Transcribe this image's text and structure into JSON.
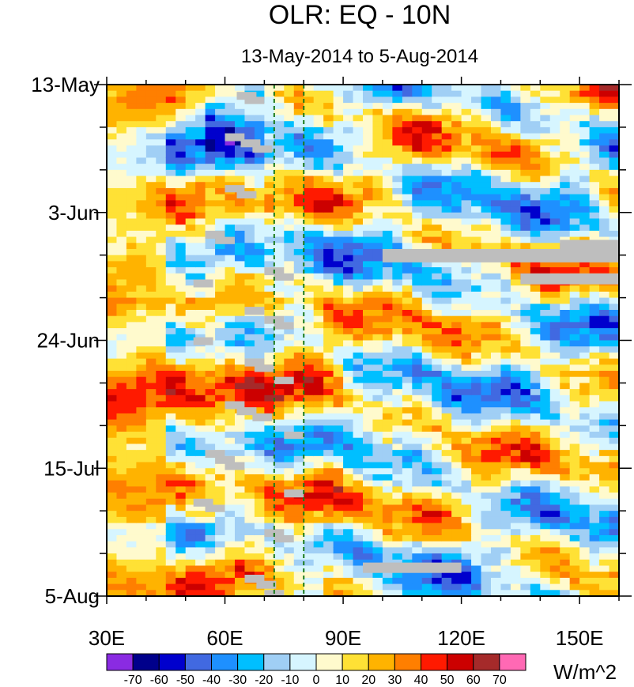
{
  "chart_data": {
    "type": "heatmap",
    "title": "OLR: EQ - 10N",
    "subtitle": "13-May-2014 to 5-Aug-2014",
    "xlabel": "",
    "ylabel": "",
    "xlim": [
      30,
      160
    ],
    "ylim_days": [
      0,
      84
    ],
    "x_ticks": [
      {
        "value": 30,
        "label": "30E"
      },
      {
        "value": 60,
        "label": "60E"
      },
      {
        "value": 90,
        "label": "90E"
      },
      {
        "value": 120,
        "label": "120E"
      },
      {
        "value": 150,
        "label": "150E"
      }
    ],
    "y_ticks": [
      {
        "day": 0,
        "label": "13-May"
      },
      {
        "day": 21,
        "label": "3-Jun"
      },
      {
        "day": 42,
        "label": "24-Jun"
      },
      {
        "day": 63,
        "label": "15-Jul"
      },
      {
        "day": 84,
        "label": "5-Aug"
      }
    ],
    "reference_lines_lon": [
      72.5,
      80
    ],
    "colorbar": {
      "units": "W/m^2",
      "levels": [
        -70,
        -60,
        -50,
        -40,
        -30,
        -20,
        -10,
        0,
        10,
        20,
        30,
        40,
        50,
        60,
        70
      ],
      "colors": [
        "#8a2be2",
        "#00008b",
        "#0000cd",
        "#4169e1",
        "#1e90ff",
        "#00bfff",
        "#a0cff5",
        "#d6f5ff",
        "#fffacd",
        "#ffe135",
        "#ffb300",
        "#ff7f00",
        "#ff1a00",
        "#cc0000",
        "#a52a2a",
        "#ff69b4"
      ]
    },
    "grid": false,
    "missing_color": "#bebebe"
  },
  "axis_labels": {
    "x": [
      "30E",
      "60E",
      "90E",
      "120E",
      "150E"
    ],
    "y": [
      "13-May",
      "3-Jun",
      "24-Jun",
      "15-Jul",
      "5-Aug"
    ],
    "colorbar_ticks": [
      "-70",
      "-60",
      "-50",
      "-40",
      "-30",
      "-20",
      "-10",
      "0",
      "10",
      "20",
      "30",
      "40",
      "50",
      "60",
      "70"
    ]
  }
}
